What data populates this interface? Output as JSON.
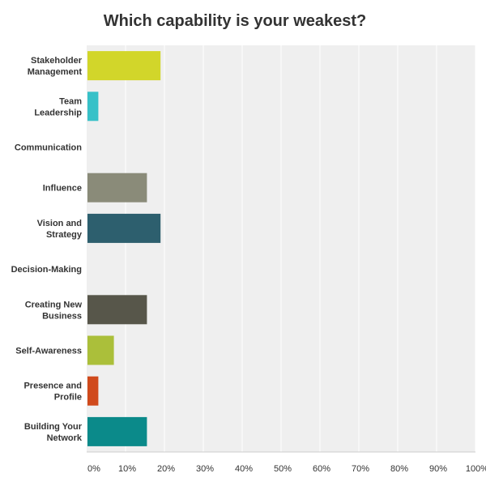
{
  "chart_data": {
    "type": "bar",
    "orientation": "horizontal",
    "title": "Which capability is your weakest?",
    "categories": [
      "Stakeholder Management",
      "Team Leadership",
      "Communication",
      "Influence",
      "Vision and Strategy",
      "Decision-Making",
      "Creating New Business",
      "Self-Awareness",
      "Presence and Profile",
      "Building Your Network"
    ],
    "values": [
      19.0,
      3.0,
      0,
      15.5,
      19.0,
      0,
      15.5,
      7.0,
      3.0,
      15.5
    ],
    "bar_colors": [
      "#d2d62a",
      "#37c1c8",
      "#cccccc",
      "#8a8b79",
      "#2d5f6e",
      "#cccccc",
      "#57564a",
      "#abbf3a",
      "#d04a1c",
      "#0b8a8a"
    ],
    "xlim": [
      0,
      100
    ],
    "xticks": [
      "0%",
      "10%",
      "20%",
      "30%",
      "40%",
      "50%",
      "60%",
      "70%",
      "80%",
      "90%",
      "100%"
    ],
    "xlabel": "",
    "ylabel": "",
    "grid": true,
    "plot_background": "#efefef"
  }
}
